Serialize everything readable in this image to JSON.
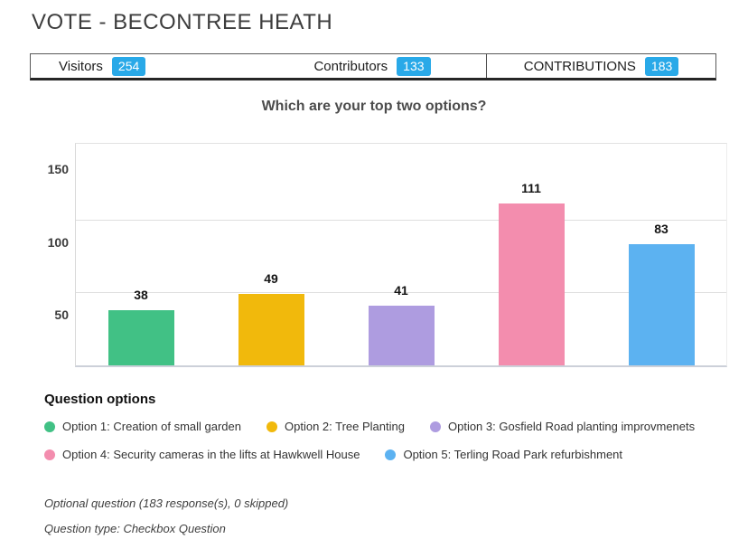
{
  "page": {
    "title": "VOTE - BECONTREE HEATH"
  },
  "stats": {
    "badge_color": "#29a9e8",
    "items": [
      {
        "label": "Visitors",
        "value": "254"
      },
      {
        "label": "Contributors",
        "value": "133"
      },
      {
        "label": "CONTRIBUTIONS",
        "value": "183"
      }
    ]
  },
  "chart_data": {
    "type": "bar",
    "title": "Which are your top two options?",
    "categories": [
      "Option 1: Creation of small garden",
      "Option 2: Tree Planting",
      "Option 3: Gosfield Road planting improvmenets",
      "Option 4: Security cameras in the lifts at Hawkwell House",
      "Option 5: Terling Road Park refurbishment"
    ],
    "values": [
      38,
      49,
      41,
      111,
      83
    ],
    "bar_colors": [
      "#41c185",
      "#f1b90c",
      "#ae9ce0",
      "#f38dae",
      "#5cb2f1"
    ],
    "xlabel": "",
    "ylabel": "",
    "ylim": [
      0,
      152
    ],
    "yticks": [
      50,
      100,
      150
    ],
    "grid": true,
    "legend_position": "bottom",
    "value_labels": true
  },
  "legend": {
    "heading": "Question options",
    "items": [
      {
        "label": "Option 1: Creation of small garden",
        "color": "#41c185"
      },
      {
        "label": "Option 2: Tree Planting",
        "color": "#f1b90c"
      },
      {
        "label": "Option 3: Gosfield Road planting improvmenets",
        "color": "#ae9ce0"
      },
      {
        "label": "Option 4: Security cameras in the lifts at Hawkwell House",
        "color": "#f38dae"
      },
      {
        "label": "Option 5: Terling Road Park refurbishment",
        "color": "#5cb2f1"
      }
    ]
  },
  "footer": {
    "line1": "Optional question (183 response(s), 0 skipped)",
    "line2": "Question type: Checkbox Question"
  }
}
